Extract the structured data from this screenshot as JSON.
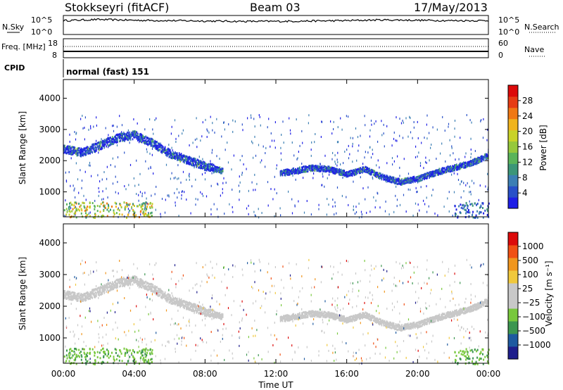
{
  "header": {
    "station": "Stokkseyri (fitACF)",
    "beam": "Beam 03",
    "date": "17/May/2013"
  },
  "colors": {
    "power_scale": [
      "#1e1ee6",
      "#2850c8",
      "#3c7fb4",
      "#3c9678",
      "#5ab45a",
      "#96c83c",
      "#c8d228",
      "#f0b41e",
      "#f07814",
      "#e63c14",
      "#dc0a0a"
    ],
    "velocity_scale": [
      "#dc0a0a",
      "#f05014",
      "#f0961e",
      "#f0c83c",
      "#c8c8c8",
      "#c8c8c8",
      "#78c83c",
      "#3c9650",
      "#1e5aa0",
      "#1e1e8c"
    ],
    "range_gray": "#c8c8c8"
  },
  "chart_data": [
    {
      "type": "line",
      "panel": "sky-noise",
      "ylabel_left": "N.Sky",
      "ylabel_right": "N.Search",
      "yticks_left": [
        "10^5",
        "10^0"
      ],
      "yticks_right": [
        "10^5",
        "10^0"
      ],
      "x": [
        0,
        2,
        4,
        6,
        8,
        10,
        12,
        14,
        16,
        18,
        20,
        22,
        24
      ],
      "values": [
        3.6,
        3.9,
        3.7,
        3.6,
        3.5,
        3.4,
        3.4,
        3.5,
        3.6,
        3.8,
        3.7,
        3.6,
        3.6
      ]
    },
    {
      "type": "line",
      "panel": "frequency",
      "ylabel_left": "Freq. [MHz]",
      "ylabel_right": "Nave",
      "yticks_left": [
        "18",
        "8"
      ],
      "yticks_right": [
        "60",
        "0"
      ],
      "freq_mhz": 10,
      "nave": 30,
      "cpid_label": "CPID",
      "cpid_text": "normal (fast) 151"
    },
    {
      "type": "heatmap",
      "panel": "power",
      "ylabel": "Slant Range [km]",
      "colorbar_label": "Power [dB]",
      "colorbar_ticks": [
        "28",
        "24",
        "20",
        "16",
        "12",
        "8",
        "4"
      ],
      "ylim": [
        200,
        4600
      ],
      "yticks": [
        "1000",
        "2000",
        "3000",
        "4000"
      ],
      "xlim_hours": [
        0,
        24
      ],
      "echo_band": {
        "x_hours": [
          0,
          1,
          2,
          3,
          4,
          5,
          6,
          7,
          8,
          9,
          12,
          13,
          14,
          15,
          16,
          17,
          18,
          19,
          20,
          21,
          22,
          23,
          24
        ],
        "range_km": [
          2400,
          2300,
          2500,
          2750,
          2850,
          2600,
          2250,
          2050,
          1850,
          1700,
          1600,
          1700,
          1800,
          1750,
          1600,
          1750,
          1500,
          1350,
          1450,
          1650,
          1800,
          1950,
          2200
        ]
      }
    },
    {
      "type": "heatmap",
      "panel": "velocity",
      "ylabel": "Slant Range [km]",
      "colorbar_label": "Velocity [m s⁻¹]",
      "colorbar_ticks": [
        "1000",
        "500",
        "100",
        "25",
        "−25",
        "−100",
        "−500",
        "−1000"
      ],
      "ylim": [
        200,
        4600
      ],
      "yticks": [
        "1000",
        "2000",
        "3000",
        "4000"
      ],
      "xlabel": "Time UT",
      "xticks": [
        "00:00",
        "04:00",
        "08:00",
        "12:00",
        "16:00",
        "20:00",
        "00:00"
      ]
    }
  ]
}
